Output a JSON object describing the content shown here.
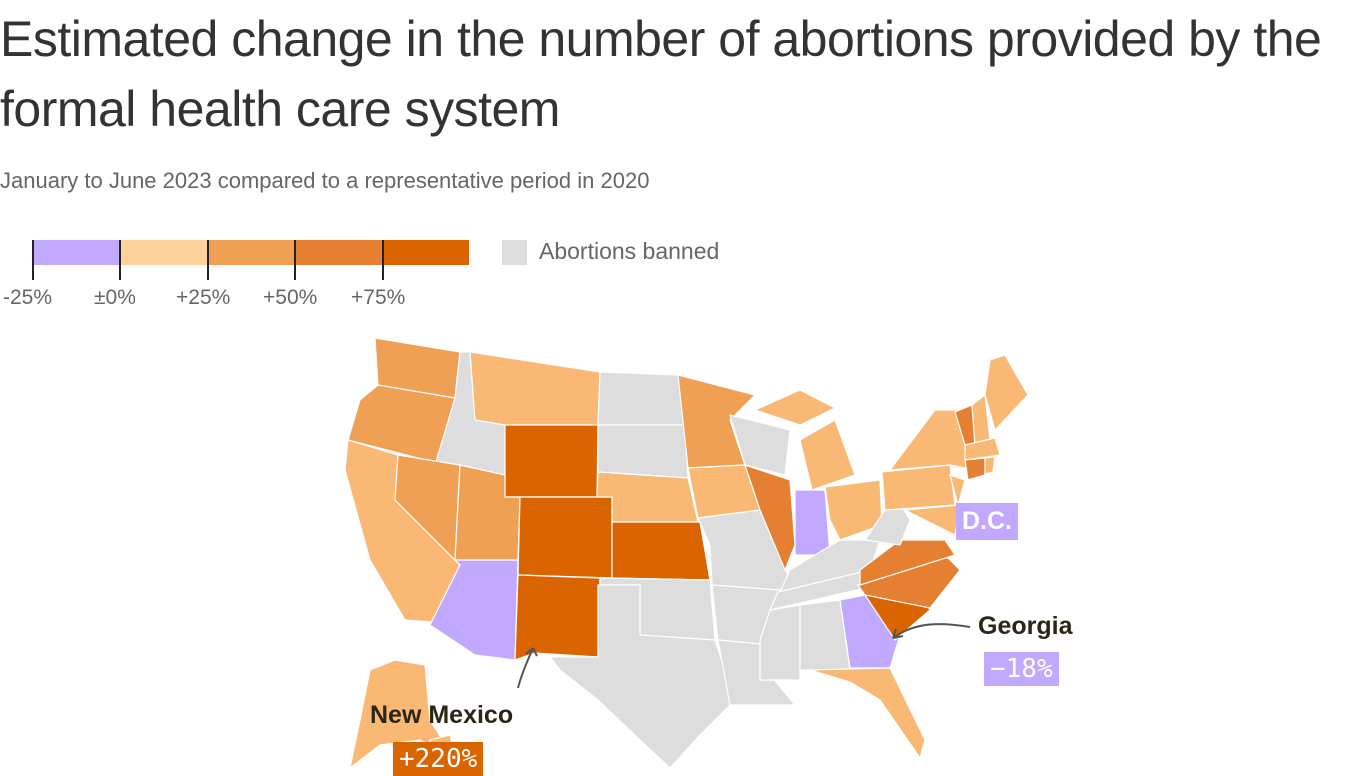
{
  "title": "Estimated change in the number of abortions provided by the formal health care system",
  "subtitle": "January to June 2023 compared to a representative period in 2020",
  "legend": {
    "bins": [
      {
        "range": "-25% to ±0%",
        "color": "#c0a9ff"
      },
      {
        "range": "±0% to +25%",
        "color": "#fed29c"
      },
      {
        "range": "+25% to +50%",
        "color": "#f0a055"
      },
      {
        "range": "+50% to +75%",
        "color": "#e58033"
      },
      {
        "range": "+75% and up",
        "color": "#d96400"
      }
    ],
    "ticks": [
      "-25%",
      "±0%",
      "+25%",
      "+50%",
      "+75%"
    ],
    "banned_label": "Abortions banned",
    "banned_color": "#dddddd"
  },
  "map": {
    "state_color_light": "#f9b874",
    "states": {
      "WA": "c3",
      "OR": "c3",
      "CA": "c2",
      "NV": "c3",
      "ID": "b",
      "MT": "c2",
      "WY": "c5",
      "UT": "c3",
      "AZ": "c1",
      "CO": "c5",
      "NM": "c5",
      "ND": "b",
      "SD": "b",
      "NE": "c2",
      "KS": "c5",
      "OK": "b",
      "TX": "b",
      "MN": "c3",
      "IA": "c2",
      "MO": "b",
      "AR": "b",
      "LA": "b",
      "WI": "b",
      "IL": "c4",
      "MI": "c2",
      "MI_UP": "c2",
      "IN": "c1",
      "OH": "c2",
      "KY": "b",
      "TN": "b",
      "MS": "b",
      "AL": "b",
      "GA": "c1",
      "FL": "c2",
      "SC": "c5",
      "NC": "c4",
      "VA": "c4",
      "WV": "b",
      "PA": "c2",
      "NY": "c2",
      "MD": "c2",
      "NJ": "c2",
      "VT": "c4",
      "NH": "c2",
      "ME": "c2",
      "MA": "c2",
      "CT": "c4",
      "RI": "c2",
      "AK": "c2",
      "HI": "c2"
    }
  },
  "callouts": [
    {
      "name": "D.C.",
      "value": "",
      "color": "#c0a9ff"
    },
    {
      "name": "Georgia",
      "value": "−18%",
      "color": "#c0a9ff"
    },
    {
      "name": "New Mexico",
      "value": "+220%",
      "color": "#d96400"
    }
  ]
}
